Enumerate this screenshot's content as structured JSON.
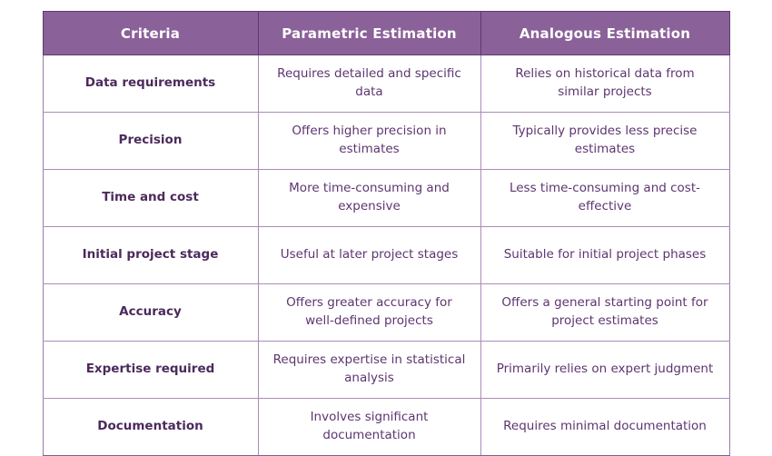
{
  "title": "Parametric vs Analogous Estimation comparison table",
  "colors": {
    "header_bg": "#8a6199",
    "header_border": "#5e3a6e",
    "header_text": "#ffffff",
    "criteria_text": "#4b2a5c",
    "body_text": "#5d3570",
    "grid_line": "#a98cb9",
    "page_bg": "#ffffff"
  },
  "chart_data": {
    "type": "table",
    "columns": [
      "Criteria",
      "Parametric Estimation",
      "Analogous Estimation"
    ],
    "rows": [
      [
        "Data requirements",
        "Requires detailed and specific data",
        "Relies on historical data from similar projects"
      ],
      [
        "Precision",
        "Offers higher precision in estimates",
        "Typically provides less precise estimates"
      ],
      [
        "Time and cost",
        "More time-consuming and expensive",
        "Less time-consuming and cost-effective"
      ],
      [
        "Initial project stage",
        "Useful at later project stages",
        "Suitable for initial project phases"
      ],
      [
        "Accuracy",
        "Offers greater accuracy for well-defined projects",
        "Offers a general starting point for project estimates"
      ],
      [
        "Expertise required",
        "Requires expertise in statistical analysis",
        "Primarily relies on expert judgment"
      ],
      [
        "Documentation",
        "Involves significant documentation",
        "Requires minimal documentation"
      ]
    ]
  }
}
